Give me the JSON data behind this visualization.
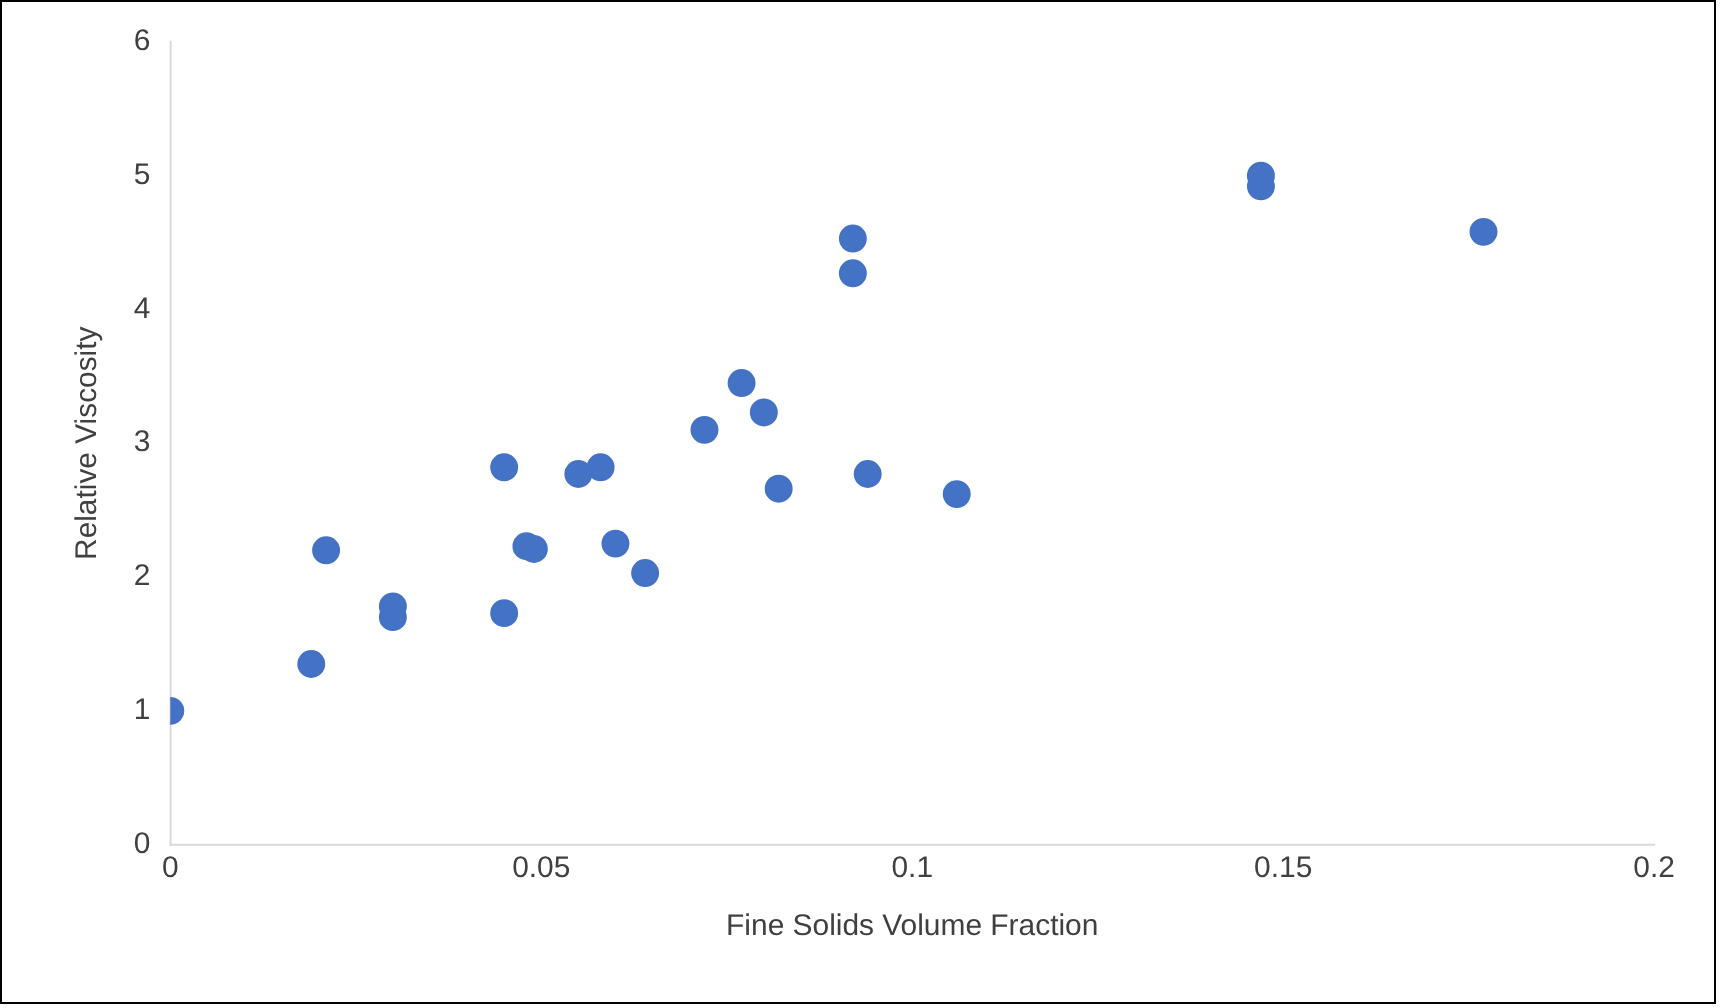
{
  "chart_data": {
    "type": "scatter",
    "xlabel": "Fine Solids Volume Fraction",
    "ylabel": "Relative Viscosity",
    "series": [
      {
        "color": "#4472c4",
        "x": [
          0,
          0.019,
          0.021,
          0.03,
          0.03,
          0.045,
          0.045,
          0.048,
          0.049,
          0.055,
          0.058,
          0.06,
          0.064,
          0.072,
          0.077,
          0.08,
          0.082,
          0.092,
          0.092,
          0.094,
          0.106,
          0.147,
          0.147,
          0.177
        ],
        "values": [
          1.0,
          1.35,
          2.2,
          1.78,
          1.7,
          2.82,
          1.73,
          2.23,
          2.21,
          2.77,
          2.82,
          2.25,
          2.03,
          3.1,
          3.45,
          3.23,
          2.66,
          4.53,
          4.27,
          2.77,
          2.62,
          5.0,
          4.92,
          4.58
        ]
      }
    ],
    "xlim": [
      0,
      0.2
    ],
    "xticks": [
      0,
      0.05,
      0.1,
      0.15,
      0.2
    ],
    "ylim": [
      0,
      6
    ],
    "yticks": [
      0,
      1,
      2,
      3,
      4,
      5,
      6
    ],
    "grid": false,
    "legend": false,
    "marker": "circle"
  }
}
